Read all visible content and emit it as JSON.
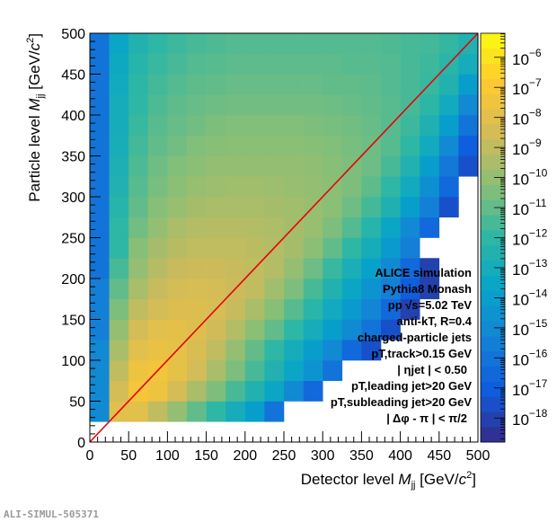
{
  "chart_data": {
    "type": "heatmap",
    "xlabel": {
      "pre": "Detector level ",
      "var": "M",
      "sub": "jj",
      "mid": " [GeV/",
      "c": "c",
      "sup": "2",
      "post": "]"
    },
    "ylabel": {
      "pre": "Particle level ",
      "var": "M",
      "sub": "jj",
      "mid": " [GeV/",
      "c": "c",
      "sup": "2",
      "post": "]"
    },
    "xlim": [
      0,
      500
    ],
    "ylim": [
      0,
      500
    ],
    "x_ticks": [
      "0",
      "50",
      "100",
      "150",
      "200",
      "250",
      "300",
      "350",
      "400",
      "450",
      "500"
    ],
    "y_ticks": [
      "0",
      "50",
      "100",
      "150",
      "200",
      "250",
      "300",
      "350",
      "400",
      "450",
      "500"
    ],
    "z_scale": "log",
    "z_range_log10": [
      -18.8,
      -5.2
    ],
    "colorbar": {
      "base": "10",
      "exponents": [
        "-6",
        "-7",
        "-8",
        "-9",
        "-10",
        "-11",
        "-12",
        "-13",
        "-14",
        "-15",
        "-16",
        "-17",
        "-18"
      ],
      "palette": [
        "#352a87",
        "#0f5cdd",
        "#1481d6",
        "#06a4ca",
        "#2eb7a4",
        "#87bf77",
        "#d1bb59",
        "#fec832",
        "#f9fb0e"
      ]
    },
    "diagonal_line": {
      "from": [
        0,
        0
      ],
      "to": [
        500,
        500
      ],
      "color": "#e8000b"
    },
    "bin_width": 25,
    "log10_values_by_row_y_ascending": [
      [
        null,
        null,
        null,
        null,
        null,
        null,
        null,
        null,
        null,
        null,
        null,
        null,
        null,
        null,
        null,
        null,
        null,
        null,
        null,
        null
      ],
      [
        -15,
        -8,
        -8,
        -9,
        -10,
        -11,
        -12,
        -13,
        -14,
        -16,
        null,
        null,
        null,
        null,
        null,
        null,
        null,
        null,
        null,
        null
      ],
      [
        -15,
        -8.5,
        -7.2,
        -7.5,
        -8.5,
        -9.5,
        -10.5,
        -11.5,
        -12.5,
        -13.5,
        -15,
        -16.5,
        null,
        null,
        null,
        null,
        null,
        null,
        null,
        null
      ],
      [
        -15,
        -9,
        -7.5,
        -7.3,
        -7.8,
        -8.5,
        -9.5,
        -10.5,
        -11.5,
        -12.5,
        -13.5,
        -14.5,
        -16,
        null,
        null,
        null,
        null,
        null,
        null,
        null
      ],
      [
        -15,
        -9.5,
        -8,
        -7.7,
        -7.8,
        -8.3,
        -9,
        -10,
        -11,
        -12,
        -13,
        -14,
        -15,
        -16.5,
        -17.5,
        null,
        null,
        null,
        null,
        null
      ],
      [
        -15.5,
        -10,
        -8.5,
        -8,
        -7.9,
        -8.1,
        -8.6,
        -9.3,
        -10.2,
        -11,
        -12,
        -13,
        -14,
        -15,
        -16,
        -17.5,
        null,
        null,
        null,
        null
      ],
      [
        -15.5,
        -10.5,
        -9,
        -8.5,
        -8.2,
        -8.2,
        -8.4,
        -8.8,
        -9.5,
        -10.3,
        -11.2,
        -12.2,
        -13.2,
        -14.2,
        -15.2,
        -16.5,
        -18,
        null,
        null,
        null
      ],
      [
        -15.5,
        -11,
        -9.5,
        -8.8,
        -8.5,
        -8.4,
        -8.5,
        -8.7,
        -9,
        -9.7,
        -10.5,
        -11.5,
        -12.5,
        -13.5,
        -14.5,
        -15.5,
        -17,
        -18,
        null,
        null
      ],
      [
        -16,
        -11.5,
        -10,
        -9.2,
        -8.8,
        -8.7,
        -8.7,
        -8.8,
        -9,
        -9.3,
        -10,
        -10.8,
        -11.8,
        -12.8,
        -13.8,
        -15,
        -16.5,
        -18,
        null,
        null
      ],
      [
        -16,
        -12,
        -10.3,
        -9.6,
        -9.2,
        -9,
        -9,
        -9,
        -9.1,
        -9.3,
        -9.6,
        -10.2,
        -11,
        -12,
        -13,
        -14.2,
        -15.5,
        null,
        null,
        null
      ],
      [
        -16,
        -12,
        -10.7,
        -10,
        -9.5,
        -9.3,
        -9.2,
        -9.2,
        -9.3,
        -9.4,
        -9.6,
        -9.9,
        -10.5,
        -11.3,
        -12.3,
        -13.5,
        -15,
        -16.5,
        null,
        null
      ],
      [
        -16,
        -12.3,
        -11,
        -10.3,
        -9.9,
        -9.6,
        -9.5,
        -9.5,
        -9.5,
        -9.6,
        -9.7,
        -9.9,
        -10.2,
        -10.8,
        -11.6,
        -12.6,
        -14,
        -15.5,
        -17.5,
        null
      ],
      [
        -16,
        -12.5,
        -11.2,
        -10.6,
        -10.2,
        -9.9,
        -9.8,
        -9.7,
        -9.7,
        -9.8,
        -9.9,
        -10,
        -10.2,
        -10.5,
        -11.1,
        -12,
        -13.2,
        -14.7,
        -16.5,
        null
      ],
      [
        -16,
        -12.7,
        -11.4,
        -10.8,
        -10.4,
        -10.2,
        -10,
        -10,
        -10,
        -10,
        -10,
        -10.1,
        -10.3,
        -10.5,
        -10.8,
        -11.5,
        -12.5,
        -14,
        -15.8,
        -17.5
      ],
      [
        -16,
        -12.9,
        -11.6,
        -11,
        -10.7,
        -10.4,
        -10.3,
        -10.2,
        -10.2,
        -10.2,
        -10.2,
        -10.3,
        -10.4,
        -10.6,
        -10.8,
        -11.2,
        -12,
        -13.2,
        -15,
        -17
      ],
      [
        -16,
        -13,
        -11.8,
        -11.2,
        -10.9,
        -10.7,
        -10.5,
        -10.4,
        -10.4,
        -10.4,
        -10.4,
        -10.5,
        -10.6,
        -10.7,
        -10.9,
        -11.2,
        -11.7,
        -12.6,
        -14,
        -16
      ],
      [
        -16,
        -13,
        -12,
        -11.4,
        -11.1,
        -10.9,
        -10.8,
        -10.7,
        -10.7,
        -10.7,
        -10.7,
        -10.7,
        -10.8,
        -10.9,
        -11,
        -11.2,
        -11.5,
        -12.1,
        -13.2,
        -15
      ],
      [
        -16,
        -13.2,
        -12.1,
        -11.6,
        -11.3,
        -11.1,
        -11,
        -10.9,
        -10.9,
        -10.9,
        -10.9,
        -10.9,
        -11,
        -11,
        -11.1,
        -11.3,
        -11.5,
        -11.8,
        -12.5,
        -14
      ],
      [
        -16,
        -13.3,
        -12.3,
        -11.8,
        -11.5,
        -11.3,
        -11.2,
        -11.1,
        -11.1,
        -11.1,
        -11.1,
        -11.1,
        -11.1,
        -11.2,
        -11.2,
        -11.3,
        -11.5,
        -11.7,
        -12.2,
        -13
      ],
      [
        -16,
        -13.5,
        -12.5,
        -12,
        -11.7,
        -11.5,
        -11.4,
        -11.3,
        -11.3,
        -11.3,
        -11.3,
        -11.3,
        -11.3,
        -11.3,
        -11.3,
        -11.4,
        -11.5,
        -11.6,
        -11.9,
        -12.5
      ]
    ],
    "annotations": [
      {
        "t": "ALICE simulation"
      },
      {
        "t": "Pythia8 Monash"
      },
      {
        "t": "pp  √s=5.02 TeV"
      },
      {
        "t": "anti-kT,  R=0.4"
      },
      {
        "t": "charged-particle jets"
      },
      {
        "t": "pT,track>0.15 GeV"
      },
      {
        "t": "| ηjet | < 0.50"
      },
      {
        "t": "pT,leading jet>20 GeV"
      },
      {
        "t": "pT,subleading jet>20 GeV"
      },
      {
        "t": "| Δφ - π | <  π/2"
      }
    ]
  },
  "watermark": "ALI-SIMUL-505371"
}
